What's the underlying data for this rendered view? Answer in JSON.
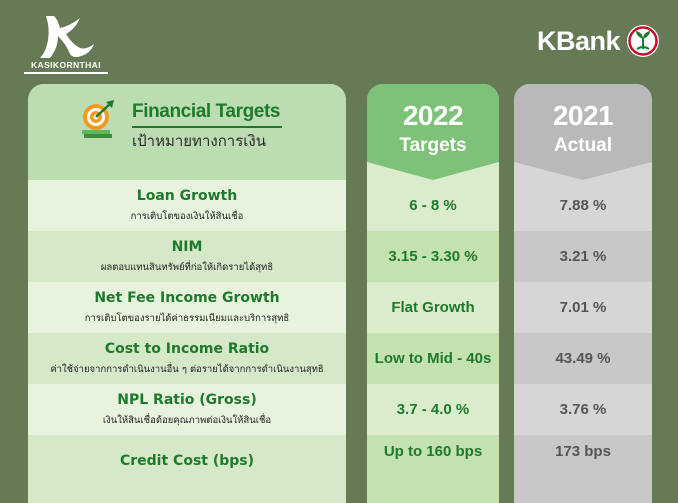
{
  "logos": {
    "kasikornthai": "KASIKORNTHAI",
    "kbank": "KBank"
  },
  "header": {
    "title": "Financial Targets",
    "subtitle": "เป้าหมายทางการเงิน",
    "target_year": "2022",
    "target_label": "Targets",
    "actual_year": "2021",
    "actual_label": "Actual"
  },
  "rows": [
    {
      "title": "Loan Growth",
      "subtitle": "การเติบโตของเงินให้สินเชื่อ",
      "target": "6 - 8 %",
      "actual": "7.88 %"
    },
    {
      "title": "NIM",
      "subtitle": "ผลตอบแทนสินทรัพย์ที่ก่อให้เกิดรายได้สุทธิ",
      "target": "3.15 - 3.30 %",
      "actual": "3.21 %"
    },
    {
      "title": "Net Fee Income Growth",
      "subtitle": "การเติบโตของรายได้ค่าธรรมเนียมและบริการสุทธิ",
      "target": "Flat Growth",
      "actual": "7.01 %"
    },
    {
      "title": "Cost to Income Ratio",
      "subtitle": "ค่าใช้จ่ายจากการดำเนินงานอื่น ๆ ต่อรายได้จากการดำเนินงานสุทธิ",
      "target": "Low to Mid - 40s",
      "actual": "43.49 %"
    },
    {
      "title": "NPL Ratio (Gross)",
      "subtitle": "เงินให้สินเชื่อด้อยคุณภาพต่อเงินให้สินเชื่อ",
      "target": "3.7 - 4.0 %",
      "actual": "3.76 %"
    },
    {
      "title": "Credit Cost (bps)",
      "subtitle": "",
      "target": "Up to 160 bps",
      "actual": "173 bps"
    }
  ],
  "colors": {
    "background": "#677a56",
    "green_text": "#1d7a2c",
    "target_header": "#7ec27a",
    "actual_header": "#b9b9b9"
  },
  "icons": [
    "kasikornthai-logo",
    "kbank-seal-icon",
    "financial-target-icon"
  ]
}
